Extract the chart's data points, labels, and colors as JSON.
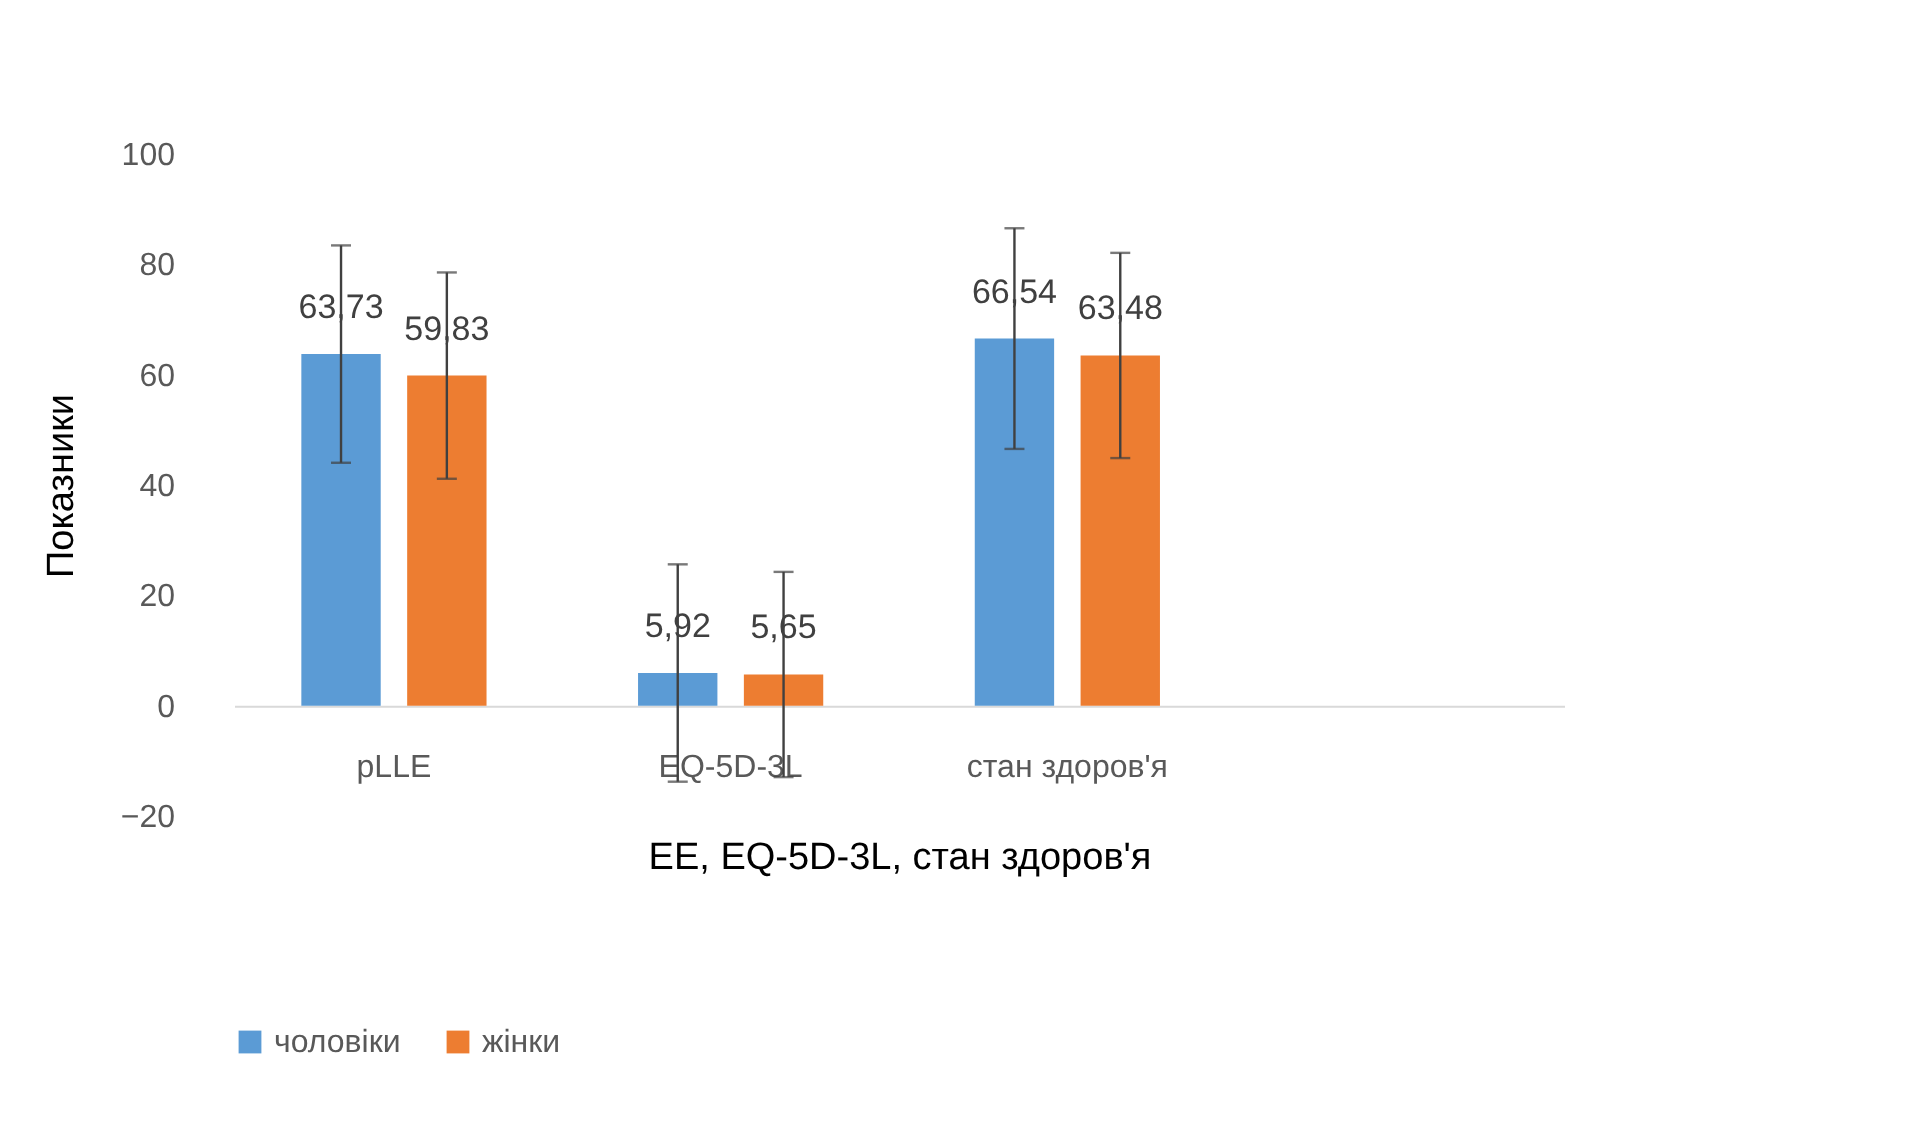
{
  "chart_data": {
    "type": "bar",
    "xlabel": "EE, EQ-5D-3L, стан здоров'я",
    "ylabel": "Показники",
    "categories": [
      "pLLE",
      "EQ-5D-3L",
      "стан здоров'я",
      null
    ],
    "series": [
      {
        "name": "чоловіки",
        "color": "#5b9bd5",
        "values": [
          63.73,
          5.92,
          66.54,
          null
        ],
        "errors": [
          19.7,
          19.7,
          20,
          null
        ],
        "value_labels": [
          "63,73",
          "5,92",
          "66,54",
          null
        ]
      },
      {
        "name": "жінки",
        "color": "#ed7d31",
        "values": [
          59.83,
          5.65,
          63.48,
          null
        ],
        "errors": [
          18.7,
          18.6,
          18.6,
          null
        ],
        "value_labels": [
          "59,83",
          "5,65",
          "63,48",
          null
        ]
      }
    ],
    "ylim": [
      -20,
      100
    ],
    "yticks": [
      -20,
      0,
      20,
      40,
      60,
      80,
      100
    ],
    "grid": false,
    "legend": "bottom"
  }
}
